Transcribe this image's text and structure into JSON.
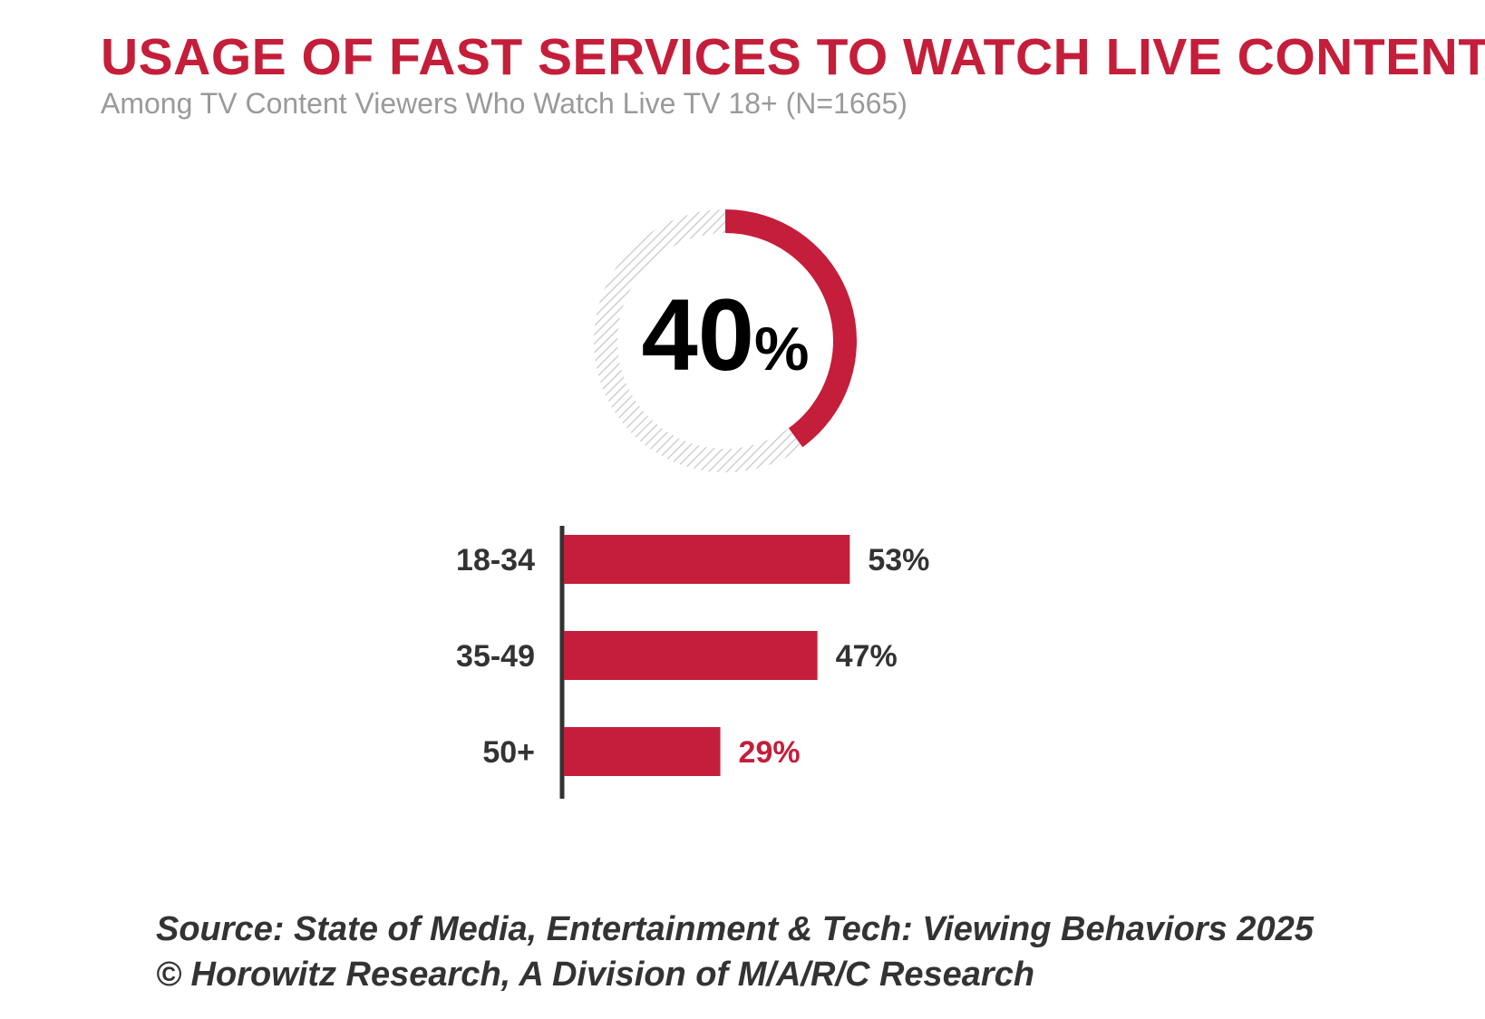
{
  "header": {
    "title": "USAGE OF FAST SERVICES TO WATCH LIVE CONTENT",
    "subtitle": "Among TV Content Viewers Who Watch Live TV 18+ (N=1665)"
  },
  "chart_data": [
    {
      "type": "pie",
      "style": "donut",
      "value": 40,
      "display_number": "40",
      "display_unit": "%",
      "fill_color": "#c41e3a",
      "remainder_style": "hatched-gray"
    },
    {
      "type": "bar",
      "orientation": "horizontal",
      "categories": [
        "18-34",
        "35-49",
        "50+"
      ],
      "values": [
        53,
        47,
        29
      ],
      "labels": [
        "53%",
        "47%",
        "29%"
      ],
      "label_colors": [
        "#333333",
        "#333333",
        "#c41e3a"
      ],
      "bar_color": "#c41e3a",
      "xlim": [
        0,
        100
      ]
    }
  ],
  "footer": {
    "source_line": "Source: State of Media, Entertainment & Tech: Viewing Behaviors 2025",
    "copyright_line": "© Horowitz Research, A Division of M/A/R/C Research"
  },
  "colors": {
    "accent": "#c41e3a",
    "subtitle": "#9a9a9a",
    "text": "#333333"
  }
}
